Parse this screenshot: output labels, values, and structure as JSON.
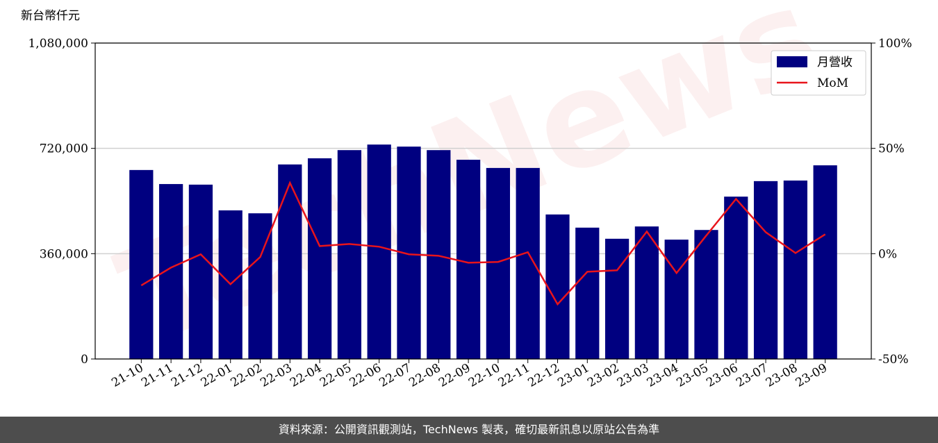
{
  "chart_data": {
    "type": "bar_line",
    "unit_label": "新台幣仟元",
    "watermark": "TechNews",
    "categories": [
      "21-10",
      "21-11",
      "21-12",
      "22-01",
      "22-02",
      "22-03",
      "22-04",
      "22-05",
      "22-06",
      "22-07",
      "22-08",
      "22-09",
      "22-10",
      "22-11",
      "22-12",
      "23-01",
      "23-02",
      "23-03",
      "23-04",
      "23-05",
      "23-06",
      "23-07",
      "23-08",
      "23-09"
    ],
    "series": [
      {
        "name": "月營收",
        "color": "#000080",
        "values": [
          646000,
          598000,
          596000,
          508000,
          498000,
          665000,
          686000,
          714000,
          733000,
          726000,
          714000,
          681000,
          653000,
          653000,
          494000,
          449000,
          411000,
          453000,
          408000,
          441000,
          555000,
          608000,
          610000,
          662000
        ]
      },
      {
        "name": "MoM",
        "color": "#e8141b",
        "axis": "y2",
        "values": [
          -15.1,
          -6.6,
          -0.3,
          -14.5,
          -1.6,
          33.6,
          3.6,
          4.6,
          3.3,
          -0.3,
          -1.0,
          -4.3,
          -3.9,
          0.7,
          -24.0,
          -8.6,
          -7.9,
          10.5,
          -9.2,
          8.6,
          26.0,
          10.2,
          0.3,
          9.2
        ]
      }
    ],
    "ylim": [
      0,
      1080000
    ],
    "yticks": [
      0,
      {
        "value": 360000,
        "label": "360,000"
      },
      {
        "value": 720000,
        "label": "720,000"
      },
      {
        "value": 1080000,
        "label": "1,080,000"
      }
    ],
    "y2lim": [
      -50,
      100
    ],
    "y2ticks": [
      {
        "value": -50,
        "label": "-50%"
      },
      {
        "value": 0,
        "label": "0%"
      },
      {
        "value": 50,
        "label": "50%"
      },
      {
        "value": 100,
        "label": "100%"
      }
    ],
    "grid": true,
    "legend": "upper right",
    "source": "資料來源：公開資訊觀測站，TechNews 製表，確切最新訊息以原站公告為準"
  }
}
